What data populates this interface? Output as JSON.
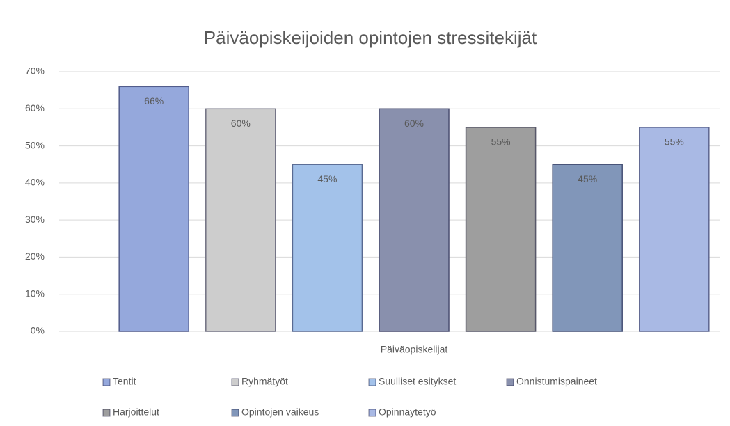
{
  "chart_data": {
    "type": "bar",
    "title": "Päiväopiskeijoiden opintojen stressitekijät",
    "categories": [
      "Päiväopiskelijat"
    ],
    "series": [
      {
        "name": "Tentit",
        "color": "#95a8dc",
        "values": [
          66
        ],
        "value_labels": [
          "66%"
        ]
      },
      {
        "name": "Ryhmätyöt",
        "color": "#cdcdcd",
        "values": [
          60
        ],
        "value_labels": [
          "60%"
        ]
      },
      {
        "name": "Suulliset esitykset",
        "color": "#a3c2ea",
        "values": [
          45
        ],
        "value_labels": [
          "45%"
        ]
      },
      {
        "name": "Onnistumispaineet",
        "color": "#8990ad",
        "values": [
          60
        ],
        "value_labels": [
          "60%"
        ]
      },
      {
        "name": "Harjoittelut",
        "color": "#9e9e9e",
        "values": [
          55
        ],
        "value_labels": [
          "55%"
        ]
      },
      {
        "name": "Opintojen vaikeus",
        "color": "#8196b9",
        "values": [
          45
        ],
        "value_labels": [
          "45%"
        ]
      },
      {
        "name": "Opinnäytetyö",
        "color": "#a9b9e4",
        "values": [
          55
        ],
        "value_labels": [
          "55%"
        ]
      }
    ],
    "ylim": [
      0,
      70
    ],
    "yticks": [
      {
        "value": 0,
        "label": "0%"
      },
      {
        "value": 10,
        "label": "10%"
      },
      {
        "value": 20,
        "label": "20%"
      },
      {
        "value": 30,
        "label": "30%"
      },
      {
        "value": 40,
        "label": "40%"
      },
      {
        "value": 50,
        "label": "50%"
      },
      {
        "value": 60,
        "label": "60%"
      },
      {
        "value": 70,
        "label": "70%"
      }
    ],
    "grid": true,
    "legend": "bottom"
  }
}
